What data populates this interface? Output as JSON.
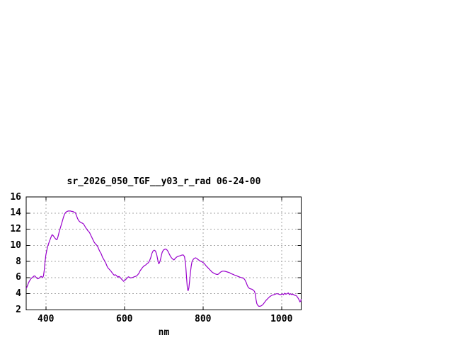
{
  "chart_data": {
    "type": "line",
    "title": "sr_2026_050_TGF__y03_r_rad 06-24-00",
    "xlabel": "nm",
    "ylabel": "",
    "xlim": [
      350,
      1050
    ],
    "ylim": [
      2,
      16
    ],
    "xticks": [
      400,
      600,
      800,
      1000
    ],
    "yticks": [
      2,
      4,
      6,
      8,
      10,
      12,
      14,
      16
    ],
    "grid": "dashed",
    "legend": "none",
    "line_color": "#9900CC",
    "grid_color": "#A6A6A6",
    "axis_color": "#000000",
    "background_color": "#FFFFFF",
    "series": [
      {
        "points": [
          [
            350,
            4.65
          ],
          [
            352,
            4.85
          ],
          [
            354,
            5.1
          ],
          [
            356,
            5.35
          ],
          [
            358,
            5.55
          ],
          [
            360,
            5.7
          ],
          [
            362,
            5.85
          ],
          [
            364,
            5.95
          ],
          [
            366,
            6.05
          ],
          [
            368,
            6.1
          ],
          [
            370,
            6.2
          ],
          [
            372,
            6.2
          ],
          [
            374,
            6.1
          ],
          [
            376,
            6.0
          ],
          [
            378,
            5.9
          ],
          [
            380,
            5.85
          ],
          [
            382,
            5.9
          ],
          [
            384,
            6.0
          ],
          [
            386,
            6.1
          ],
          [
            388,
            6.15
          ],
          [
            390,
            6.1
          ],
          [
            392,
            6.0
          ],
          [
            394,
            6.2
          ],
          [
            396,
            6.9
          ],
          [
            398,
            7.9
          ],
          [
            400,
            8.8
          ],
          [
            402,
            9.3
          ],
          [
            405,
            9.9
          ],
          [
            408,
            10.35
          ],
          [
            411,
            10.75
          ],
          [
            414,
            11.1
          ],
          [
            416,
            11.3
          ],
          [
            418,
            11.25
          ],
          [
            421,
            11.05
          ],
          [
            424,
            10.85
          ],
          [
            427,
            10.7
          ],
          [
            429,
            10.75
          ],
          [
            431,
            11.1
          ],
          [
            433,
            11.5
          ],
          [
            436,
            12.0
          ],
          [
            439,
            12.5
          ],
          [
            442,
            13.0
          ],
          [
            445,
            13.5
          ],
          [
            448,
            13.9
          ],
          [
            451,
            14.1
          ],
          [
            454,
            14.2
          ],
          [
            457,
            14.25
          ],
          [
            460,
            14.25
          ],
          [
            463,
            14.25
          ],
          [
            466,
            14.2
          ],
          [
            469,
            14.2
          ],
          [
            472,
            14.1
          ],
          [
            475,
            14.05
          ],
          [
            478,
            13.7
          ],
          [
            481,
            13.3
          ],
          [
            484,
            13.05
          ],
          [
            487,
            12.9
          ],
          [
            490,
            12.8
          ],
          [
            493,
            12.75
          ],
          [
            496,
            12.65
          ],
          [
            499,
            12.4
          ],
          [
            502,
            12.15
          ],
          [
            505,
            11.95
          ],
          [
            508,
            11.75
          ],
          [
            511,
            11.6
          ],
          [
            514,
            11.3
          ],
          [
            517,
            11.0
          ],
          [
            520,
            10.7
          ],
          [
            523,
            10.4
          ],
          [
            526,
            10.2
          ],
          [
            529,
            10.05
          ],
          [
            532,
            9.85
          ],
          [
            535,
            9.5
          ],
          [
            538,
            9.2
          ],
          [
            541,
            8.95
          ],
          [
            544,
            8.55
          ],
          [
            547,
            8.3
          ],
          [
            550,
            8.05
          ],
          [
            553,
            7.75
          ],
          [
            556,
            7.4
          ],
          [
            559,
            7.15
          ],
          [
            562,
            7.0
          ],
          [
            565,
            6.85
          ],
          [
            568,
            6.65
          ],
          [
            571,
            6.45
          ],
          [
            574,
            6.3
          ],
          [
            577,
            6.35
          ],
          [
            580,
            6.25
          ],
          [
            583,
            6.05
          ],
          [
            586,
            6.15
          ],
          [
            589,
            6.05
          ],
          [
            592,
            5.85
          ],
          [
            595,
            5.7
          ],
          [
            598,
            5.55
          ],
          [
            601,
            5.65
          ],
          [
            604,
            5.8
          ],
          [
            607,
            5.95
          ],
          [
            610,
            6.1
          ],
          [
            613,
            6.05
          ],
          [
            616,
            5.95
          ],
          [
            619,
            6.0
          ],
          [
            622,
            6.05
          ],
          [
            625,
            6.1
          ],
          [
            628,
            6.15
          ],
          [
            631,
            6.2
          ],
          [
            634,
            6.35
          ],
          [
            637,
            6.55
          ],
          [
            640,
            6.85
          ],
          [
            643,
            7.05
          ],
          [
            646,
            7.25
          ],
          [
            649,
            7.4
          ],
          [
            652,
            7.5
          ],
          [
            655,
            7.6
          ],
          [
            658,
            7.75
          ],
          [
            661,
            7.85
          ],
          [
            664,
            8.1
          ],
          [
            667,
            8.45
          ],
          [
            670,
            9.0
          ],
          [
            673,
            9.3
          ],
          [
            676,
            9.4
          ],
          [
            679,
            9.3
          ],
          [
            682,
            8.9
          ],
          [
            685,
            8.2
          ],
          [
            687,
            7.75
          ],
          [
            689,
            7.8
          ],
          [
            691,
            8.1
          ],
          [
            693,
            8.5
          ],
          [
            696,
            9.1
          ],
          [
            699,
            9.4
          ],
          [
            702,
            9.5
          ],
          [
            705,
            9.55
          ],
          [
            708,
            9.45
          ],
          [
            711,
            9.25
          ],
          [
            714,
            8.95
          ],
          [
            717,
            8.65
          ],
          [
            720,
            8.45
          ],
          [
            723,
            8.3
          ],
          [
            726,
            8.2
          ],
          [
            729,
            8.35
          ],
          [
            732,
            8.5
          ],
          [
            735,
            8.6
          ],
          [
            738,
            8.65
          ],
          [
            741,
            8.7
          ],
          [
            744,
            8.75
          ],
          [
            747,
            8.8
          ],
          [
            750,
            8.8
          ],
          [
            753,
            8.6
          ],
          [
            756,
            7.6
          ],
          [
            758,
            6.2
          ],
          [
            760,
            4.8
          ],
          [
            762,
            4.35
          ],
          [
            764,
            4.7
          ],
          [
            766,
            5.6
          ],
          [
            768,
            6.6
          ],
          [
            770,
            7.4
          ],
          [
            772,
            7.95
          ],
          [
            775,
            8.25
          ],
          [
            778,
            8.4
          ],
          [
            781,
            8.45
          ],
          [
            784,
            8.4
          ],
          [
            787,
            8.25
          ],
          [
            790,
            8.15
          ],
          [
            793,
            8.05
          ],
          [
            796,
            8.0
          ],
          [
            799,
            7.9
          ],
          [
            802,
            7.8
          ],
          [
            805,
            7.65
          ],
          [
            808,
            7.45
          ],
          [
            811,
            7.3
          ],
          [
            814,
            7.15
          ],
          [
            817,
            7.0
          ],
          [
            820,
            6.85
          ],
          [
            823,
            6.7
          ],
          [
            826,
            6.6
          ],
          [
            829,
            6.5
          ],
          [
            832,
            6.45
          ],
          [
            835,
            6.4
          ],
          [
            838,
            6.4
          ],
          [
            841,
            6.5
          ],
          [
            844,
            6.65
          ],
          [
            847,
            6.75
          ],
          [
            850,
            6.8
          ],
          [
            853,
            6.8
          ],
          [
            856,
            6.78
          ],
          [
            859,
            6.75
          ],
          [
            862,
            6.7
          ],
          [
            865,
            6.65
          ],
          [
            868,
            6.6
          ],
          [
            871,
            6.5
          ],
          [
            874,
            6.45
          ],
          [
            877,
            6.4
          ],
          [
            880,
            6.32
          ],
          [
            883,
            6.28
          ],
          [
            886,
            6.22
          ],
          [
            889,
            6.15
          ],
          [
            892,
            6.1
          ],
          [
            895,
            6.05
          ],
          [
            898,
            6.0
          ],
          [
            901,
            5.95
          ],
          [
            904,
            5.9
          ],
          [
            907,
            5.7
          ],
          [
            910,
            5.4
          ],
          [
            913,
            5.0
          ],
          [
            916,
            4.75
          ],
          [
            919,
            4.65
          ],
          [
            922,
            4.6
          ],
          [
            925,
            4.55
          ],
          [
            928,
            4.45
          ],
          [
            931,
            4.3
          ],
          [
            933,
            4.0
          ],
          [
            935,
            3.3
          ],
          [
            937,
            2.8
          ],
          [
            939,
            2.6
          ],
          [
            942,
            2.45
          ],
          [
            945,
            2.45
          ],
          [
            948,
            2.5
          ],
          [
            951,
            2.6
          ],
          [
            954,
            2.75
          ],
          [
            957,
            2.95
          ],
          [
            960,
            3.15
          ],
          [
            963,
            3.3
          ],
          [
            966,
            3.45
          ],
          [
            969,
            3.6
          ],
          [
            972,
            3.7
          ],
          [
            975,
            3.8
          ],
          [
            978,
            3.85
          ],
          [
            981,
            3.9
          ],
          [
            984,
            3.95
          ],
          [
            987,
            4.0
          ],
          [
            990,
            4.0
          ],
          [
            993,
            3.95
          ],
          [
            996,
            3.9
          ],
          [
            999,
            3.9
          ],
          [
            1002,
            4.0
          ],
          [
            1005,
            3.9
          ],
          [
            1008,
            4.05
          ],
          [
            1011,
            3.95
          ],
          [
            1014,
            4.0
          ],
          [
            1017,
            4.1
          ],
          [
            1020,
            3.9
          ],
          [
            1023,
            4.0
          ],
          [
            1026,
            3.9
          ],
          [
            1029,
            3.95
          ],
          [
            1032,
            3.85
          ],
          [
            1035,
            3.8
          ],
          [
            1038,
            3.75
          ],
          [
            1041,
            3.55
          ],
          [
            1044,
            3.3
          ],
          [
            1047,
            3.0
          ],
          [
            1049,
            3.1
          ],
          [
            1050,
            3.35
          ]
        ]
      }
    ]
  }
}
